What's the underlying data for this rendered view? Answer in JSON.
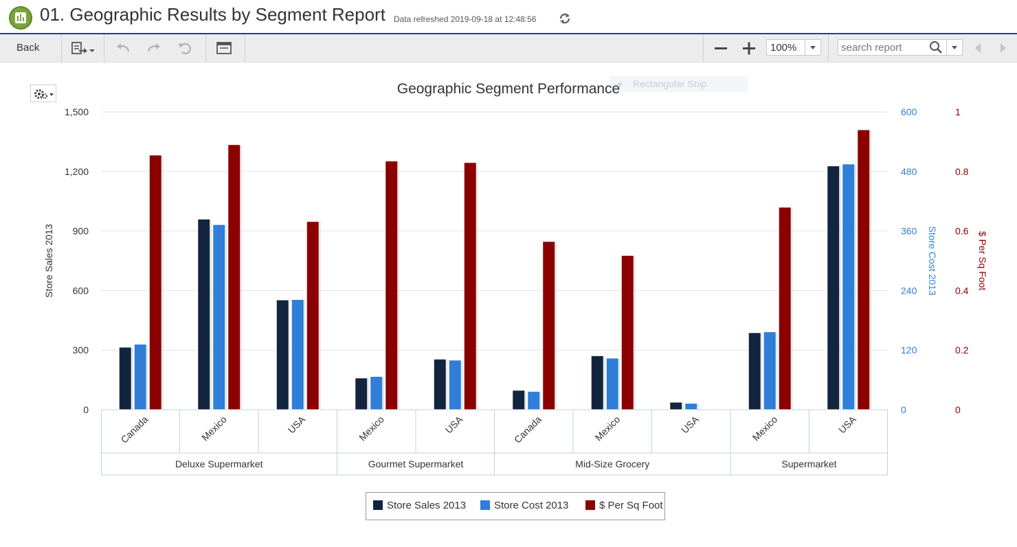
{
  "header": {
    "title": "01. Geographic Results by Segment Report",
    "refresh_text": "Data refreshed 2019-09-18 at 12:48:56"
  },
  "toolbar": {
    "back_label": "Back",
    "zoom_value": "100%",
    "search_placeholder": "search report"
  },
  "overlay": {
    "snip_label": "Rectangular Snip"
  },
  "colors": {
    "sales": "#13243f",
    "cost": "#2f7ed8",
    "sqft": "#8b0000",
    "header_rule": "#1f3f8f",
    "toolbar_bg": "#ececec"
  },
  "icons": {
    "app": "report-app-icon",
    "refresh": "refresh-icon",
    "export": "export-icon",
    "undo": "undo-icon",
    "redo": "redo-icon",
    "revert": "revert-icon",
    "layout": "layout-icon",
    "zoom_out": "minus-icon",
    "zoom_in": "plus-icon",
    "search": "search-icon",
    "prev": "prev-arrow-icon",
    "next": "next-arrow-icon",
    "gear": "gear-icon"
  },
  "chart_data": {
    "type": "bar",
    "title": "Geographic Segment Performance",
    "groups": [
      {
        "label": "Deluxe Supermarket",
        "categories": [
          "Canada",
          "Mexico",
          "USA"
        ]
      },
      {
        "label": "Gourmet Supermarket",
        "categories": [
          "Mexico",
          "USA"
        ]
      },
      {
        "label": "Mid-Size Grocery",
        "categories": [
          "Canada",
          "Mexico",
          "USA"
        ]
      },
      {
        "label": "Supermarket",
        "categories": [
          "Mexico",
          "USA"
        ]
      }
    ],
    "categories": [
      "Canada",
      "Mexico",
      "USA",
      "Mexico",
      "USA",
      "Canada",
      "Mexico",
      "USA",
      "Mexico",
      "USA"
    ],
    "series": [
      {
        "name": "Store Sales 2013",
        "axis": "left",
        "values": [
          315,
          960,
          553,
          160,
          255,
          98,
          272,
          38,
          388,
          1228
        ]
      },
      {
        "name": "Store Cost 2013",
        "axis": "right1",
        "values": [
          132,
          373,
          222,
          67,
          100,
          37,
          104,
          13,
          157,
          495
        ]
      },
      {
        "name": "$ Per Sq Foot",
        "axis": "right2",
        "values": [
          0.855,
          0.89,
          0.632,
          0.835,
          0.83,
          0.565,
          0.518,
          0,
          0.68,
          0.94
        ]
      }
    ],
    "axes": {
      "left": {
        "label": "Store Sales 2013",
        "range": [
          0,
          1500
        ],
        "ticks": [
          "1,500",
          "1,200",
          "900",
          "600",
          "300",
          "0"
        ]
      },
      "right1": {
        "label": "Store Cost 2013",
        "range": [
          0,
          600
        ],
        "ticks": [
          "600",
          "480",
          "360",
          "240",
          "120",
          "0"
        ]
      },
      "right2": {
        "label": "$ Per Sq Foot",
        "range": [
          0,
          1
        ],
        "ticks": [
          "1",
          "0.8",
          "0.6",
          "0.4",
          "0.2",
          "0"
        ]
      }
    },
    "grid": true,
    "legend_position": "bottom-center"
  }
}
